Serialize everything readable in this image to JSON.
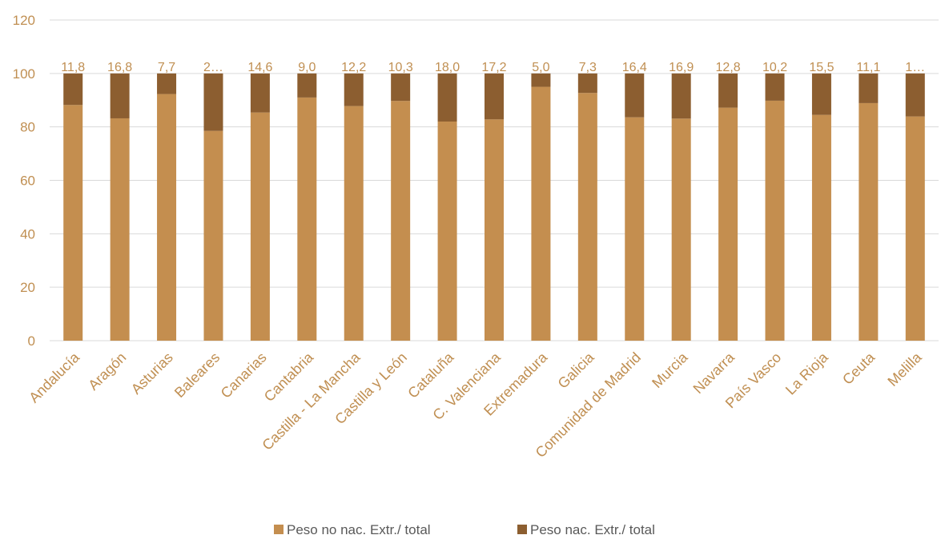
{
  "chart_data": {
    "type": "bar",
    "stacked": true,
    "categories": [
      "Andalucía",
      "Aragón",
      "Asturias",
      "Baleares",
      "Canarias",
      "Cantabria",
      "Castilla - La Mancha",
      "Castilla y León",
      "Cataluña",
      "C. Valenciana",
      "Extremadura",
      "Galicia",
      "Comunidad de Madrid",
      "Murcia",
      "Navarra",
      "País Vasco",
      "La Rioja",
      "Ceuta",
      "Melilla"
    ],
    "series": [
      {
        "name": "Peso no nac. Extr./ total",
        "color": "#c48e4f",
        "values": [
          88.2,
          83.2,
          92.3,
          78.5,
          85.4,
          91.0,
          87.8,
          89.7,
          82.0,
          82.8,
          95.0,
          92.7,
          83.6,
          83.1,
          87.2,
          89.8,
          84.5,
          88.9,
          83.9
        ]
      },
      {
        "name": "Peso nac. Extr./ total",
        "color": "#8c5e30",
        "values": [
          11.8,
          16.8,
          7.7,
          21.5,
          14.6,
          9.0,
          12.2,
          10.3,
          18.0,
          17.2,
          5.0,
          7.3,
          16.4,
          16.9,
          12.8,
          10.2,
          15.5,
          11.1,
          16.1
        ]
      }
    ],
    "data_labels": [
      "11,8",
      "16,8",
      "7,7",
      "2…",
      "14,6",
      "9,0",
      "12,2",
      "10,3",
      "18,0",
      "17,2",
      "5,0",
      "7,3",
      "16,4",
      "16,9",
      "12,8",
      "10,2",
      "15,5",
      "11,1",
      "1…"
    ],
    "yticks": [
      "0",
      "20",
      "40",
      "60",
      "80",
      "100",
      "120"
    ],
    "ylim": [
      0,
      120
    ],
    "grid": true,
    "legend": "bottom",
    "title": "",
    "xlabel": "",
    "ylabel": ""
  }
}
